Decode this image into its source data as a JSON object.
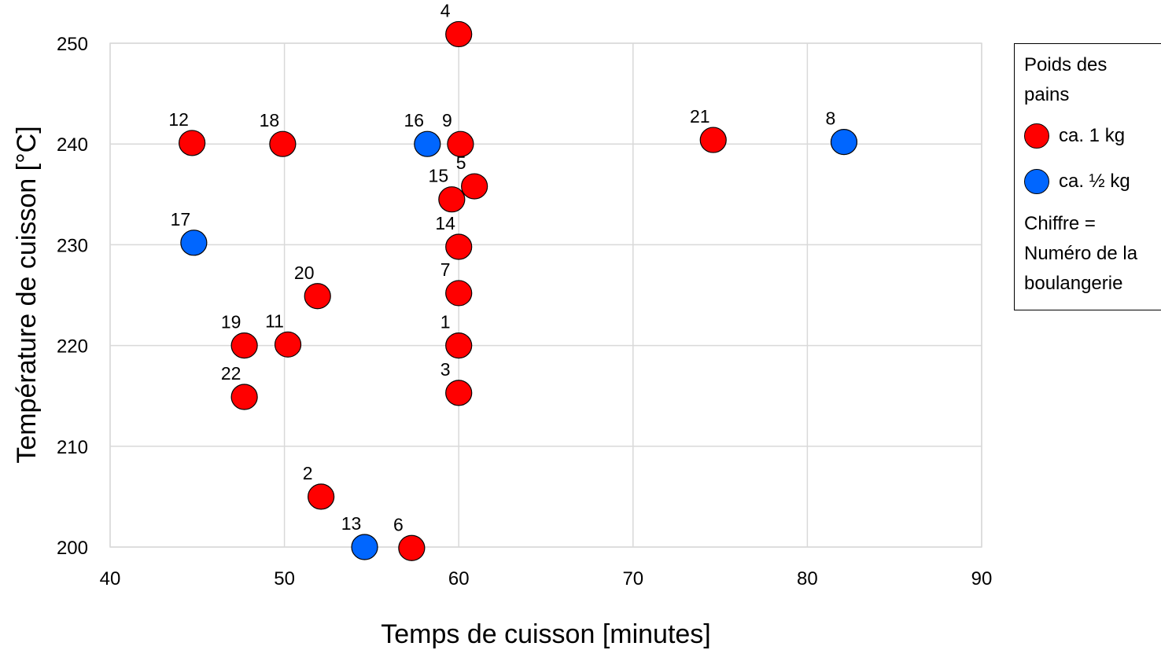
{
  "chart_data": {
    "type": "scatter",
    "title": "",
    "xlabel": "Temps de cuisson [minutes]",
    "ylabel": "Température de cuisson [°C]",
    "xlim": [
      40,
      90
    ],
    "ylim": [
      200,
      250
    ],
    "xticks": [
      40,
      50,
      60,
      70,
      80,
      90
    ],
    "yticks": [
      200,
      210,
      220,
      230,
      240,
      250
    ],
    "grid": true,
    "legend_position": "right",
    "legend": {
      "title": "Poids des pains",
      "note": "Chiffre = Numéro de la boulangerie"
    },
    "series": [
      {
        "name": "ca. 1 kg",
        "color": "#ff0000",
        "points": [
          {
            "label": "1",
            "x": 60.0,
            "y": 220
          },
          {
            "label": "2",
            "x": 52.1,
            "y": 205
          },
          {
            "label": "3",
            "x": 60.0,
            "y": 215.3
          },
          {
            "label": "4",
            "x": 60.0,
            "y": 250.9
          },
          {
            "label": "5",
            "x": 60.9,
            "y": 235.8
          },
          {
            "label": "6",
            "x": 57.3,
            "y": 199.9
          },
          {
            "label": "7",
            "x": 60.0,
            "y": 225.2
          },
          {
            "label": "9",
            "x": 60.1,
            "y": 240
          },
          {
            "label": "11",
            "x": 50.2,
            "y": 220.1
          },
          {
            "label": "12",
            "x": 44.7,
            "y": 240.1
          },
          {
            "label": "14",
            "x": 60.0,
            "y": 229.8
          },
          {
            "label": "15",
            "x": 59.6,
            "y": 234.5
          },
          {
            "label": "18",
            "x": 49.9,
            "y": 240
          },
          {
            "label": "19",
            "x": 47.7,
            "y": 220
          },
          {
            "label": "20",
            "x": 51.9,
            "y": 224.9
          },
          {
            "label": "21",
            "x": 74.6,
            "y": 240.4
          },
          {
            "label": "22",
            "x": 47.7,
            "y": 214.9
          }
        ]
      },
      {
        "name": "ca. ½ kg",
        "color": "#0066ff",
        "points": [
          {
            "label": "8",
            "x": 82.1,
            "y": 240.2
          },
          {
            "label": "13",
            "x": 54.6,
            "y": 200
          },
          {
            "label": "16",
            "x": 58.2,
            "y": 240
          },
          {
            "label": "17",
            "x": 44.8,
            "y": 230.2
          }
        ]
      }
    ]
  }
}
